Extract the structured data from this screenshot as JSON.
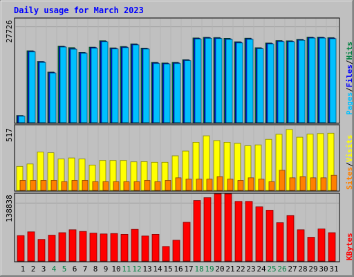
{
  "chart_data": [
    {
      "type": "bar",
      "title": "Daily usage for March 2023",
      "categories": [
        "1",
        "2",
        "3",
        "4",
        "5",
        "6",
        "7",
        "8",
        "9",
        "10",
        "11",
        "12",
        "13",
        "14",
        "15",
        "16",
        "17",
        "18",
        "19",
        "20",
        "21",
        "22",
        "23",
        "24",
        "25",
        "26",
        "27",
        "28",
        "29",
        "30",
        "31"
      ],
      "weekend_days": [
        "4",
        "5",
        "11",
        "12",
        "18",
        "19",
        "25",
        "26"
      ],
      "ymax_label": "27726",
      "ylim": [
        0,
        30060
      ],
      "right_label_parts": [
        "Pages",
        "/",
        "Files",
        "/",
        "Hits"
      ],
      "series": [
        {
          "name": "Hits",
          "color": "#008040",
          "values": [
            2060,
            20780,
            17720,
            14620,
            22140,
            21690,
            20360,
            21830,
            23680,
            21620,
            22020,
            22780,
            21570,
            17410,
            17250,
            17410,
            18210,
            24490,
            24690,
            24600,
            24370,
            23380,
            24410,
            21670,
            23040,
            23730,
            23670,
            24090,
            24730,
            24730,
            24580
          ]
        },
        {
          "name": "Files",
          "color": "#0000ff",
          "values": [
            1950,
            20620,
            17570,
            14460,
            21960,
            21380,
            20200,
            21680,
            23520,
            21460,
            21840,
            22630,
            21410,
            17250,
            17100,
            17250,
            18060,
            24330,
            24520,
            24450,
            24210,
            23220,
            24250,
            21510,
            22880,
            23580,
            23500,
            23930,
            24570,
            24570,
            24420
          ]
        },
        {
          "name": "Pages",
          "color": "#00c0ff",
          "values": [
            1850,
            20480,
            17390,
            14300,
            21840,
            21230,
            20050,
            21530,
            23370,
            21310,
            21690,
            22470,
            21260,
            17100,
            16950,
            17090,
            17910,
            24180,
            24360,
            24300,
            24060,
            23060,
            24090,
            21360,
            22730,
            23430,
            23360,
            23780,
            24420,
            24420,
            24270
          ]
        }
      ]
    },
    {
      "type": "bar",
      "categories": [
        "1",
        "2",
        "3",
        "4",
        "5",
        "6",
        "7",
        "8",
        "9",
        "10",
        "11",
        "12",
        "13",
        "14",
        "15",
        "16",
        "17",
        "18",
        "19",
        "20",
        "21",
        "22",
        "23",
        "24",
        "25",
        "26",
        "27",
        "28",
        "29",
        "30",
        "31"
      ],
      "ymax_label": "517",
      "ylim": [
        0,
        517
      ],
      "right_label_parts": [
        "Sites",
        "/",
        "Visits"
      ],
      "series": [
        {
          "name": "Visits",
          "color": "#ffff00",
          "values": [
            191,
            210,
            305,
            299,
            250,
            258,
            250,
            202,
            238,
            238,
            238,
            227,
            229,
            224,
            224,
            275,
            313,
            383,
            434,
            396,
            383,
            374,
            355,
            362,
            406,
            446,
            484,
            423,
            447,
            452,
            455
          ]
        },
        {
          "name": "Sites",
          "color": "#ff8000",
          "values": [
            80,
            80,
            80,
            80,
            70,
            80,
            80,
            70,
            70,
            70,
            70,
            70,
            80,
            70,
            80,
            100,
            90,
            90,
            90,
            110,
            90,
            80,
            100,
            90,
            70,
            160,
            100,
            110,
            100,
            100,
            120
          ]
        }
      ]
    },
    {
      "type": "bar",
      "categories": [
        "1",
        "2",
        "3",
        "4",
        "5",
        "6",
        "7",
        "8",
        "9",
        "10",
        "11",
        "12",
        "13",
        "14",
        "15",
        "16",
        "17",
        "18",
        "19",
        "20",
        "21",
        "22",
        "23",
        "24",
        "25",
        "26",
        "27",
        "28",
        "29",
        "30",
        "31"
      ],
      "ymax_label": "138838",
      "ylim": [
        0,
        160960
      ],
      "right_label_parts": [
        "KBytes"
      ],
      "series": [
        {
          "name": "KBytes",
          "color": "#ff0000",
          "values": [
            61000,
            70000,
            52000,
            62000,
            68000,
            75000,
            71000,
            67000,
            65000,
            66000,
            64000,
            76000,
            60000,
            64000,
            35000,
            50000,
            93000,
            145000,
            152000,
            161000,
            161000,
            143000,
            143000,
            130000,
            122000,
            92000,
            109000,
            75000,
            57000,
            77000,
            68000
          ]
        }
      ]
    }
  ]
}
